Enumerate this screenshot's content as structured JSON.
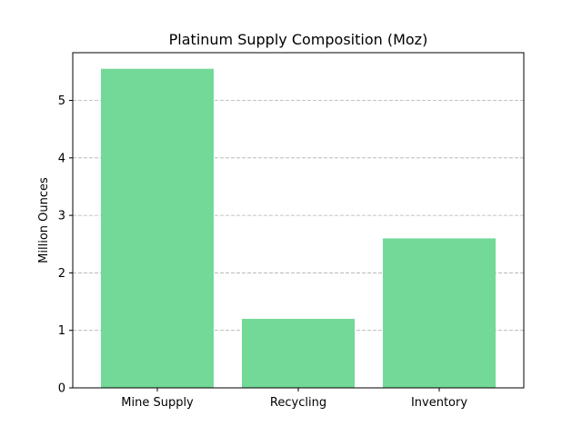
{
  "chart_data": {
    "type": "bar",
    "title": "Platinum Supply Composition (Moz)",
    "xlabel": "",
    "ylabel": "Million Ounces",
    "categories": [
      "Mine Supply",
      "Recycling",
      "Inventory"
    ],
    "values": [
      5.55,
      1.2,
      2.6
    ],
    "ylim": [
      0,
      5.83
    ],
    "yticks": [
      0,
      1,
      2,
      3,
      4,
      5
    ],
    "grid": "y-dashed",
    "bar_color": "#72d998",
    "grid_color": "#b0b0b0"
  }
}
